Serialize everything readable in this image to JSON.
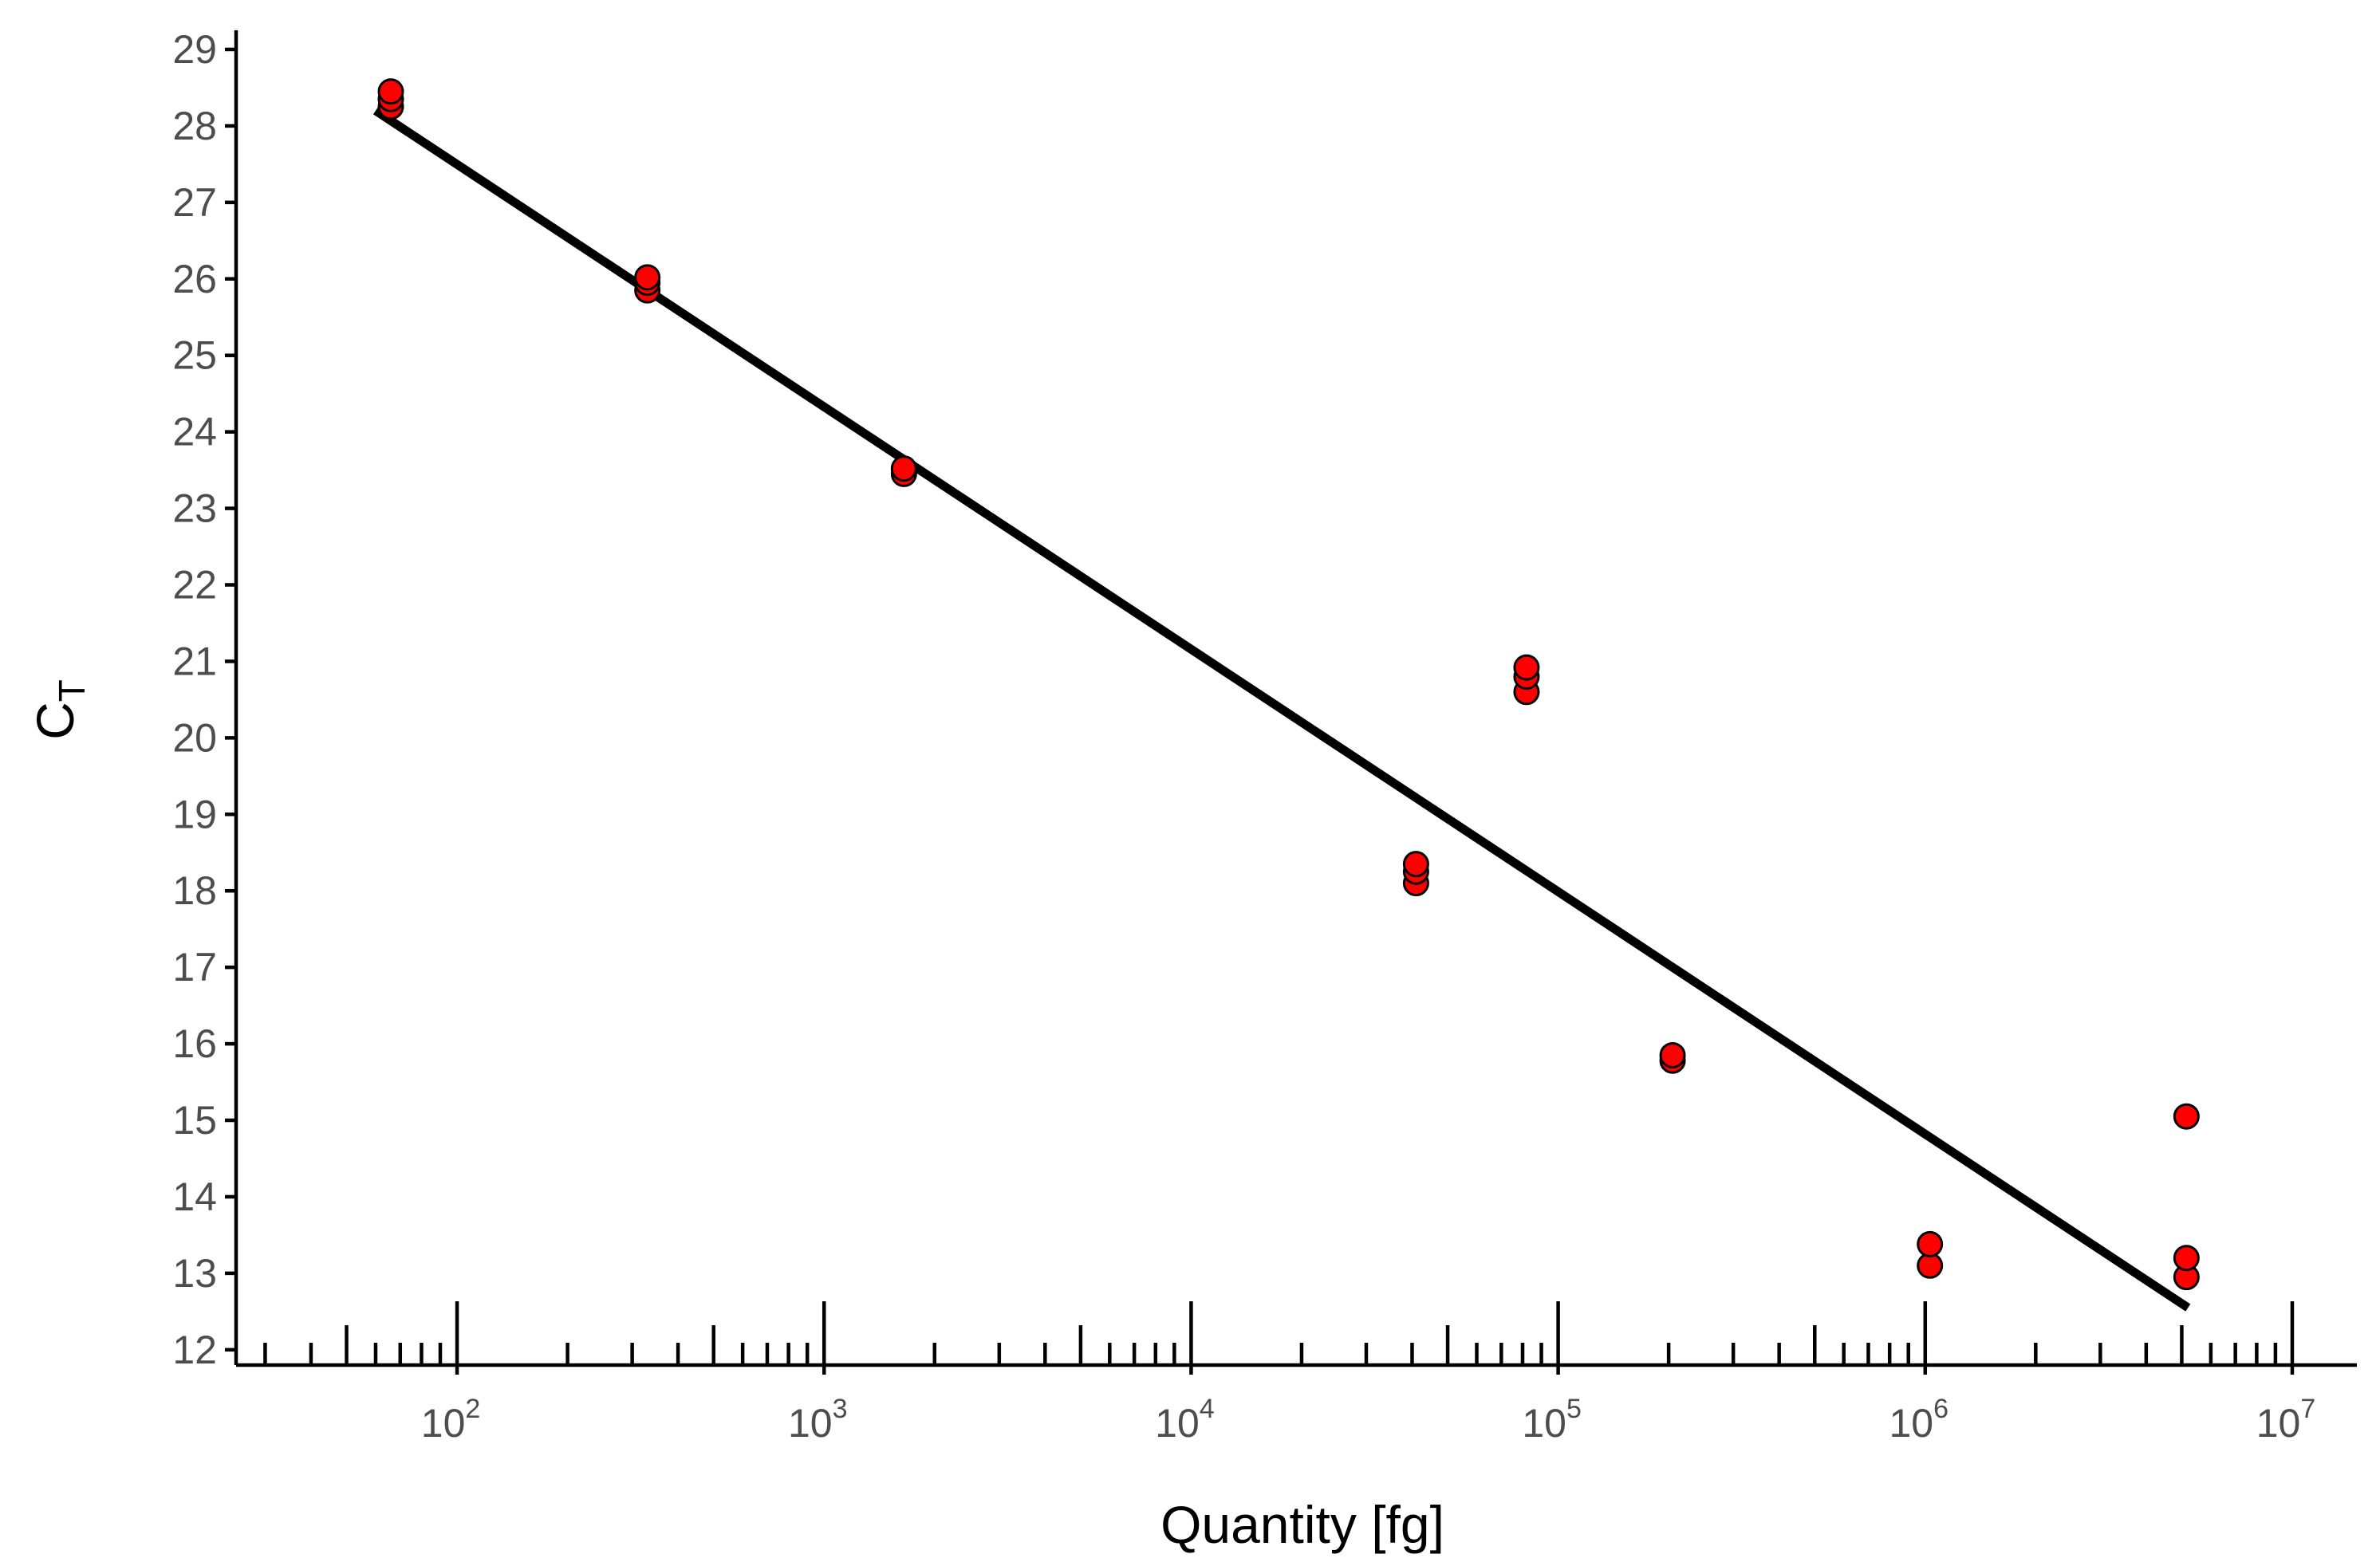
{
  "chart_data": {
    "type": "scatter",
    "title": "",
    "xlabel": "Quantity [fg]",
    "ylabel": {
      "base": "C",
      "subscript": "T"
    },
    "x_scale": "log10",
    "xlim": [
      25,
      15000000
    ],
    "ylim": [
      11.8,
      29.25
    ],
    "x_major_ticks": [
      100,
      1000,
      10000,
      100000,
      1000000,
      10000000
    ],
    "x_major_labels": [
      {
        "base": "10",
        "exp": "2"
      },
      {
        "base": "10",
        "exp": "3"
      },
      {
        "base": "10",
        "exp": "4"
      },
      {
        "base": "10",
        "exp": "5"
      },
      {
        "base": "10",
        "exp": "6"
      },
      {
        "base": "10",
        "exp": "7"
      }
    ],
    "y_ticks": [
      12,
      13,
      14,
      15,
      16,
      17,
      18,
      19,
      20,
      21,
      22,
      23,
      24,
      25,
      26,
      27,
      28,
      29
    ],
    "y_tick_labels": [
      "12",
      "13",
      "14",
      "15",
      "16",
      "17",
      "18",
      "19",
      "20",
      "21",
      "22",
      "23",
      "24",
      "25",
      "26",
      "27",
      "28",
      "29"
    ],
    "grid": false,
    "legend": "none",
    "point_color": "#ff0000",
    "point_edge_color": "#000000",
    "line_color": "#000000",
    "series": [
      {
        "type": "scatter",
        "x": [
          66,
          66,
          66,
          330,
          330,
          330,
          1650,
          1650,
          41000,
          41000,
          41000,
          82000,
          82000,
          82000,
          205000,
          205000,
          1030000,
          1030000,
          5150000,
          5150000,
          5150000
        ],
        "y": [
          28.25,
          28.35,
          28.45,
          25.85,
          25.95,
          26.02,
          23.45,
          23.52,
          18.1,
          18.25,
          18.35,
          20.6,
          20.8,
          20.92,
          15.78,
          15.85,
          13.1,
          13.38,
          12.95,
          13.2,
          15.05
        ]
      },
      {
        "type": "line",
        "x": [
          60,
          5200000
        ],
        "y": [
          28.2,
          12.55
        ]
      }
    ]
  }
}
